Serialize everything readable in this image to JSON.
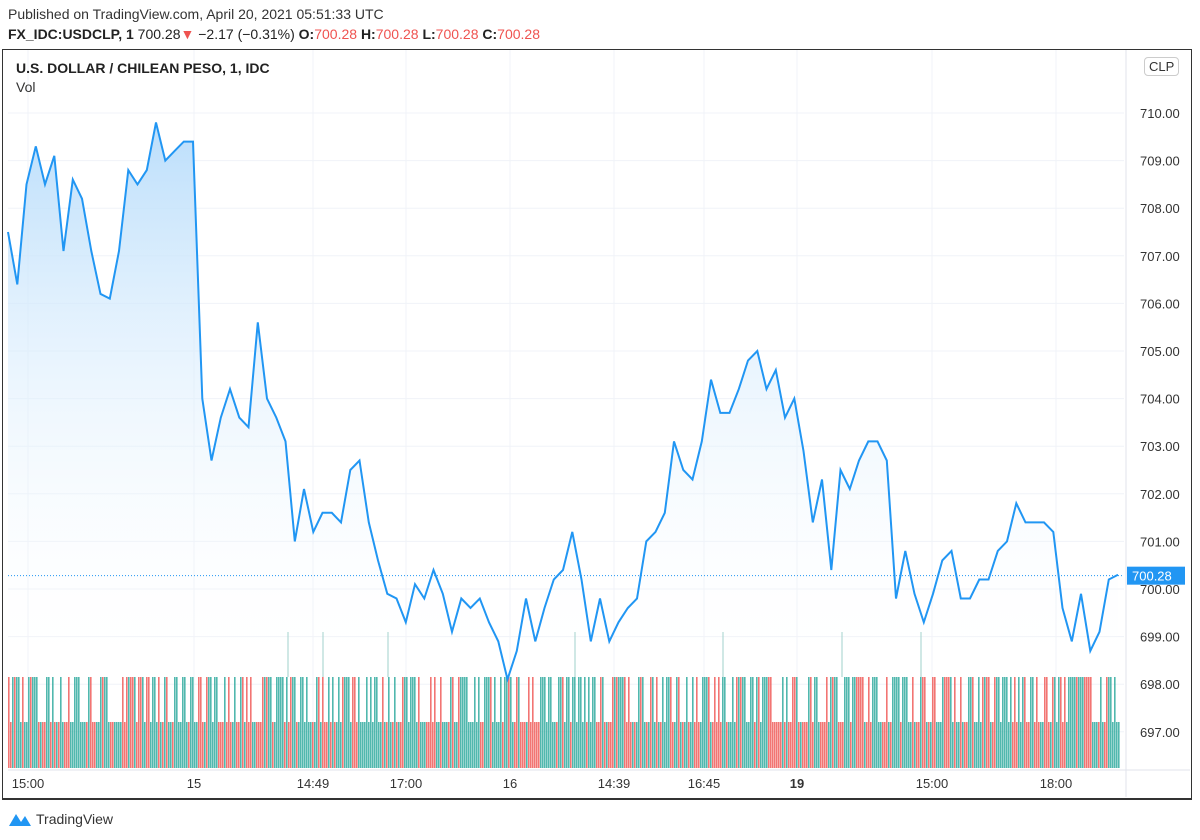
{
  "header": {
    "published": "Published on TradingView.com, April 20, 2021 05:51:33 UTC",
    "symbol": "FX_IDC:USDCLP, 1",
    "last": "700.28",
    "change": "−2.17 (−0.31%)",
    "o_label": "O:",
    "o": "700.28",
    "h_label": "H:",
    "h": "700.28",
    "l_label": "L:",
    "l": "700.28",
    "c_label": "C:",
    "c": "700.28"
  },
  "footer": {
    "brand": "TradingView"
  },
  "colors": {
    "line": "#2196f3",
    "up": "#26a69a",
    "down": "#ef5350",
    "area": "#e3f2fd"
  },
  "chart_data": {
    "type": "area",
    "title": "U.S. DOLLAR / CHILEAN PESO, 1, IDC",
    "indicator": "Vol",
    "currency": "CLP",
    "last_price_label": "700.28",
    "ylim": [
      696.3,
      711.3
    ],
    "yticks": [
      "710.00",
      "709.00",
      "708.00",
      "707.00",
      "706.00",
      "705.00",
      "704.00",
      "703.00",
      "702.00",
      "701.00",
      "700.00",
      "699.00",
      "698.00",
      "697.00"
    ],
    "xticks": [
      {
        "label": "15:00",
        "bold": false
      },
      {
        "label": "15",
        "bold": false
      },
      {
        "label": "14:49",
        "bold": false
      },
      {
        "label": "17:00",
        "bold": false
      },
      {
        "label": "16",
        "bold": false
      },
      {
        "label": "14:39",
        "bold": false
      },
      {
        "label": "16:45",
        "bold": false
      },
      {
        "label": "19",
        "bold": true
      },
      {
        "label": "15:00",
        "bold": false
      },
      {
        "label": "18:00",
        "bold": false
      }
    ],
    "grid": true,
    "values": [
      707.5,
      706.4,
      708.5,
      709.3,
      708.5,
      709.1,
      707.1,
      708.6,
      708.2,
      707.1,
      706.2,
      706.1,
      707.1,
      708.8,
      708.5,
      708.8,
      709.8,
      709.0,
      709.2,
      709.4,
      709.4,
      704.0,
      702.7,
      703.6,
      704.2,
      703.6,
      703.4,
      705.6,
      704.0,
      703.6,
      703.1,
      701.0,
      702.1,
      701.2,
      701.6,
      701.6,
      701.4,
      702.5,
      702.7,
      701.4,
      700.6,
      699.9,
      699.8,
      699.3,
      700.1,
      699.8,
      700.4,
      699.9,
      699.1,
      699.8,
      699.6,
      699.8,
      699.3,
      698.9,
      698.1,
      698.7,
      699.8,
      698.9,
      699.6,
      700.2,
      700.4,
      701.2,
      700.2,
      698.9,
      699.8,
      698.9,
      699.3,
      699.6,
      699.8,
      701.0,
      701.2,
      701.6,
      703.1,
      702.5,
      702.3,
      703.1,
      704.4,
      703.7,
      703.7,
      704.2,
      704.8,
      705.0,
      704.2,
      704.6,
      703.6,
      704.0,
      702.9,
      701.4,
      702.3,
      700.4,
      702.5,
      702.1,
      702.7,
      703.1,
      703.1,
      702.7,
      699.8,
      700.8,
      699.9,
      699.3,
      699.9,
      700.6,
      700.8,
      699.8,
      699.8,
      700.2,
      700.2,
      700.8,
      701.0,
      701.8,
      701.4,
      701.4,
      701.4,
      701.2,
      699.6,
      698.9,
      699.9,
      698.7,
      699.1,
      700.2,
      700.3
    ]
  }
}
